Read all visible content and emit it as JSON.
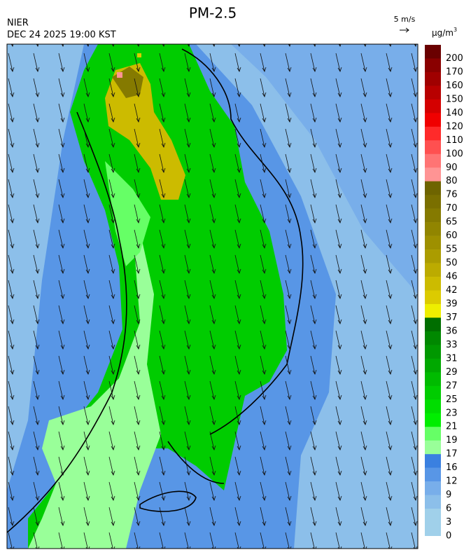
{
  "header": {
    "title": "PM-2.5",
    "agency": "NIER",
    "timestamp": "DEC 24 2025 19:00 KST",
    "wind_scale": "5 m/s"
  },
  "colorbar": {
    "unit": "μg/m",
    "unit_power": "3",
    "labels": [
      200,
      170,
      160,
      150,
      140,
      120,
      110,
      100,
      90,
      80,
      76,
      70,
      65,
      60,
      55,
      50,
      46,
      42,
      39,
      37,
      36,
      33,
      31,
      29,
      27,
      25,
      23,
      21,
      19,
      17,
      16,
      12,
      9,
      6,
      3,
      0
    ],
    "colors": [
      "#6a0000",
      "#8a0000",
      "#a00000",
      "#b80000",
      "#d40000",
      "#f00000",
      "#ff2a2a",
      "#ff5050",
      "#ff7474",
      "#ff9494",
      "#6e6400",
      "#7a6f00",
      "#857a00",
      "#918500",
      "#9e9000",
      "#ab9c00",
      "#bcab00",
      "#ccbb00",
      "#dccb00",
      "#eeee00",
      "#006e00",
      "#008800",
      "#009800",
      "#00a800",
      "#00bb00",
      "#00cc00",
      "#00dd00",
      "#00ee00",
      "#66ff66",
      "#99ff99",
      "#3a80e0",
      "#5896e6",
      "#78aeea",
      "#8cbfea",
      "#a0d0ea"
    ]
  }
}
